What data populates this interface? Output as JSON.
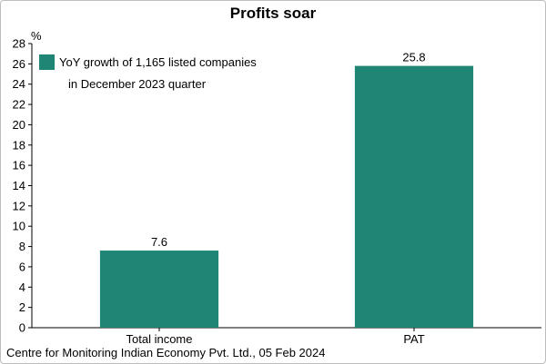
{
  "chart_data": {
    "type": "bar",
    "title": "Profits soar",
    "ylabel": "%",
    "xlabel": "",
    "categories": [
      "Total income",
      "PAT"
    ],
    "series": [
      {
        "name": "YoY growth of 1,165 listed companies in December 2023 quarter",
        "legend_lines": [
          "YoY growth of 1,165 listed companies",
          "in December 2023 quarter"
        ],
        "values": [
          7.6,
          25.8
        ],
        "color": "#1f8574"
      }
    ],
    "data_labels": [
      "7.6",
      "25.8"
    ],
    "ylim": [
      0,
      28
    ],
    "yticks": [
      0,
      2,
      4,
      6,
      8,
      10,
      12,
      14,
      16,
      18,
      20,
      22,
      24,
      26,
      28
    ],
    "grid": false,
    "legend_position": "top-left"
  },
  "source": "Centre for Monitoring Indian Economy Pvt. Ltd., 05 Feb 2024"
}
